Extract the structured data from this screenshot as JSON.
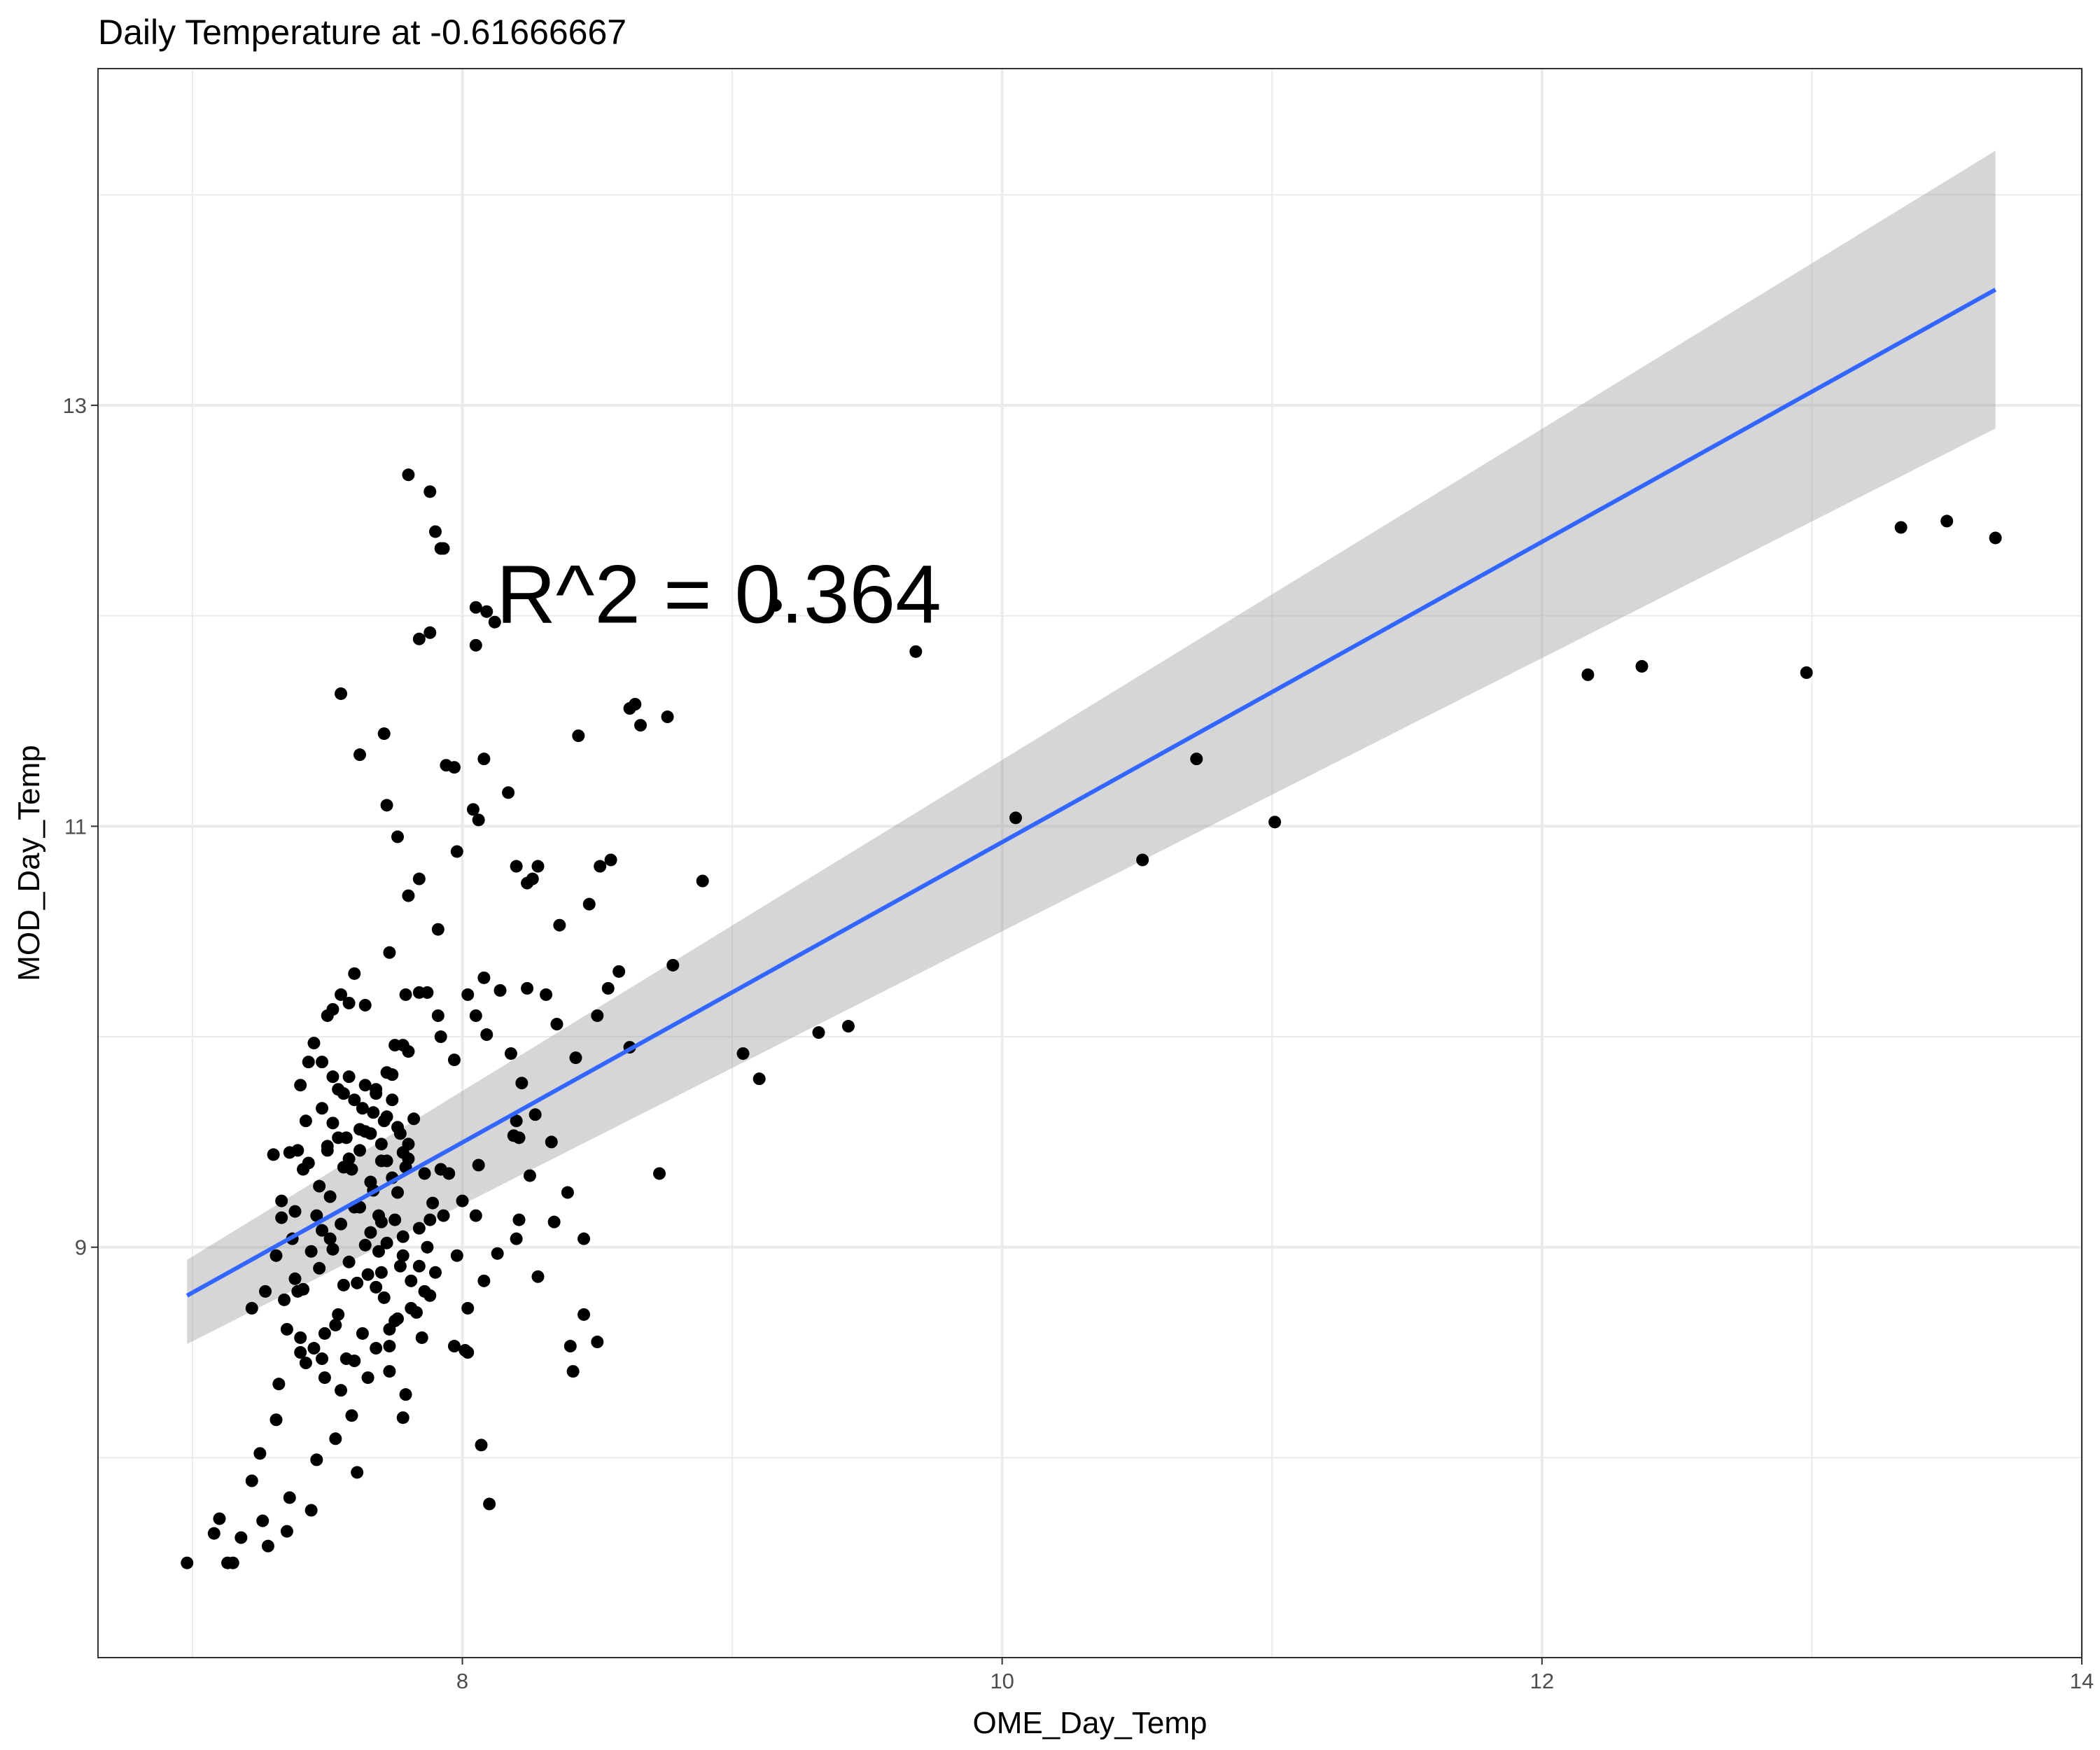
{
  "chart_data": {
    "type": "scatter",
    "title": "Daily Temperature at  -0.61666667",
    "xlabel": "OME_Day_Temp",
    "ylabel": "MOD_Day_Temp",
    "xlim": [
      6.65,
      14.0
    ],
    "ylim": [
      7.05,
      14.6
    ],
    "x_ticks": [
      8,
      10,
      12,
      14
    ],
    "x_tick_labels": [
      "8",
      "10",
      "12",
      "14"
    ],
    "x_minor_ticks": [
      7,
      9,
      11,
      13
    ],
    "y_ticks": [
      9,
      11,
      13
    ],
    "y_tick_labels": [
      "9",
      "11",
      "13"
    ],
    "y_minor_ticks": [
      8,
      10,
      12,
      14
    ],
    "grid": true,
    "annotation": {
      "text": "R^2 =  0.364",
      "x": 8.95,
      "y": 12.1
    },
    "fit": {
      "method": "linear",
      "x": [
        6.98,
        13.68
      ],
      "y": [
        8.77,
        13.55
      ],
      "ci_low": [
        8.54,
        12.89
      ],
      "ci_high": [
        8.94,
        14.21
      ]
    },
    "colors": {
      "points": "#000000",
      "fit_line": "#3366FF",
      "ci_band": "#999999",
      "grid": "#ebebeb",
      "panel_border": "#333333"
    },
    "points": [
      [
        6.98,
        7.5
      ],
      [
        7.08,
        7.64
      ],
      [
        7.1,
        7.71
      ],
      [
        7.13,
        7.5
      ],
      [
        7.15,
        7.5
      ],
      [
        7.18,
        7.62
      ],
      [
        7.22,
        7.89
      ],
      [
        7.25,
        8.02
      ],
      [
        7.26,
        7.7
      ],
      [
        7.28,
        7.58
      ],
      [
        7.22,
        8.71
      ],
      [
        7.27,
        8.79
      ],
      [
        7.31,
        8.18
      ],
      [
        7.32,
        8.35
      ],
      [
        7.33,
        9.14
      ],
      [
        7.35,
        7.65
      ],
      [
        7.36,
        7.81
      ],
      [
        7.37,
        9.04
      ],
      [
        7.38,
        9.17
      ],
      [
        7.39,
        9.46
      ],
      [
        7.4,
        8.5
      ],
      [
        7.41,
        8.8
      ],
      [
        7.42,
        8.45
      ],
      [
        7.43,
        9.4
      ],
      [
        7.44,
        7.75
      ],
      [
        7.45,
        8.52
      ],
      [
        7.46,
        7.99
      ],
      [
        7.47,
        8.9
      ],
      [
        7.48,
        9.08
      ],
      [
        7.49,
        8.38
      ],
      [
        7.5,
        9.46
      ],
      [
        7.51,
        9.04
      ],
      [
        7.52,
        9.81
      ],
      [
        7.53,
        8.09
      ],
      [
        7.54,
        9.75
      ],
      [
        7.55,
        8.32
      ],
      [
        7.56,
        9.38
      ],
      [
        7.57,
        9.52
      ],
      [
        7.58,
        8.93
      ],
      [
        7.59,
        8.2
      ],
      [
        7.6,
        9.19
      ],
      [
        7.61,
        7.93
      ],
      [
        7.62,
        9.56
      ],
      [
        7.63,
        8.59
      ],
      [
        7.64,
        9.01
      ],
      [
        7.65,
        8.87
      ],
      [
        7.66,
        9.31
      ],
      [
        7.67,
        9.64
      ],
      [
        7.68,
        8.52
      ],
      [
        7.69,
        9.15
      ],
      [
        7.7,
        9.49
      ],
      [
        7.71,
        8.76
      ],
      [
        7.72,
        9.02
      ],
      [
        7.73,
        8.41
      ],
      [
        7.74,
        9.7
      ],
      [
        7.75,
        8.65
      ],
      [
        7.76,
        9.26
      ],
      [
        7.77,
        9.54
      ],
      [
        7.78,
        8.96
      ],
      [
        7.79,
        8.3
      ],
      [
        7.8,
        9.42
      ],
      [
        7.81,
        8.84
      ],
      [
        7.82,
        9.61
      ],
      [
        7.83,
        8.69
      ],
      [
        7.84,
        9.09
      ],
      [
        7.85,
        8.57
      ],
      [
        7.86,
        9.35
      ],
      [
        7.87,
        9.0
      ],
      [
        7.88,
        8.77
      ],
      [
        7.89,
        9.21
      ],
      [
        7.51,
        9.24
      ],
      [
        7.53,
        8.63
      ],
      [
        7.55,
        9.11
      ],
      [
        7.57,
        8.47
      ],
      [
        7.59,
        9.37
      ],
      [
        7.61,
        8.83
      ],
      [
        7.63,
        9.66
      ],
      [
        7.65,
        8.38
      ],
      [
        7.67,
        9.27
      ],
      [
        7.69,
        8.98
      ],
      [
        7.71,
        9.6
      ],
      [
        7.73,
        8.53
      ],
      [
        7.75,
        9.13
      ],
      [
        7.77,
        8.91
      ],
      [
        7.79,
        9.38
      ],
      [
        7.81,
        8.71
      ],
      [
        7.52,
        8.99
      ],
      [
        7.56,
        8.82
      ],
      [
        7.62,
        9.19
      ],
      [
        7.66,
        9.07
      ],
      [
        7.7,
        8.88
      ],
      [
        7.74,
        9.33
      ],
      [
        7.78,
        9.05
      ],
      [
        7.47,
        9.29
      ],
      [
        7.49,
        8.59
      ],
      [
        7.44,
        8.98
      ],
      [
        7.42,
        9.6
      ],
      [
        7.4,
        8.57
      ],
      [
        7.38,
        8.85
      ],
      [
        7.36,
        9.45
      ],
      [
        7.35,
        8.61
      ],
      [
        7.33,
        9.22
      ],
      [
        7.3,
        9.44
      ],
      [
        7.31,
        8.96
      ],
      [
        7.34,
        8.75
      ],
      [
        7.39,
        8.79
      ],
      [
        7.41,
        9.37
      ],
      [
        7.46,
        9.15
      ],
      [
        7.48,
        8.47
      ],
      [
        7.54,
        8.68
      ],
      [
        7.58,
        9.42
      ],
      [
        7.6,
        8.46
      ],
      [
        7.64,
        9.55
      ],
      [
        7.68,
        8.81
      ],
      [
        7.72,
        9.41
      ],
      [
        7.76,
        8.66
      ],
      [
        7.8,
        9.49
      ],
      [
        7.84,
        8.91
      ],
      [
        7.86,
        8.79
      ],
      [
        7.88,
        9.13
      ],
      [
        7.92,
        9.37
      ],
      [
        7.95,
        9.35
      ],
      [
        7.98,
        8.96
      ],
      [
        8.0,
        9.22
      ],
      [
        8.02,
        8.71
      ],
      [
        8.05,
        9.15
      ],
      [
        7.97,
        8.53
      ],
      [
        8.01,
        8.51
      ],
      [
        7.93,
        9.15
      ],
      [
        7.9,
        8.88
      ],
      [
        7.48,
        9.66
      ],
      [
        7.5,
        9.48
      ],
      [
        7.52,
        9.59
      ],
      [
        7.54,
        9.52
      ],
      [
        7.56,
        9.73
      ],
      [
        7.58,
        9.81
      ],
      [
        7.6,
        9.7
      ],
      [
        7.62,
        9.46
      ],
      [
        7.64,
        9.77
      ],
      [
        7.66,
        9.54
      ],
      [
        7.68,
        9.73
      ],
      [
        7.7,
        9.41
      ],
      [
        7.72,
        9.62
      ],
      [
        7.74,
        9.82
      ],
      [
        7.76,
        9.57
      ],
      [
        7.78,
        9.45
      ],
      [
        7.8,
        9.93
      ],
      [
        7.75,
        9.96
      ],
      [
        7.78,
        9.96
      ],
      [
        7.72,
        9.83
      ],
      [
        7.68,
        9.75
      ],
      [
        7.64,
        10.15
      ],
      [
        7.6,
        10.3
      ],
      [
        7.55,
        10.2
      ],
      [
        7.58,
        10.16
      ],
      [
        7.52,
        10.13
      ],
      [
        7.5,
        10.1
      ],
      [
        7.45,
        9.97
      ],
      [
        7.48,
        9.88
      ],
      [
        7.43,
        9.88
      ],
      [
        7.4,
        9.77
      ],
      [
        7.73,
        10.4
      ],
      [
        7.79,
        10.2
      ],
      [
        7.84,
        10.21
      ],
      [
        7.91,
        10.1
      ],
      [
        7.87,
        10.21
      ],
      [
        7.92,
        10.0
      ],
      [
        7.97,
        9.89
      ],
      [
        8.08,
        10.28
      ],
      [
        8.02,
        10.2
      ],
      [
        8.05,
        10.1
      ],
      [
        8.09,
        10.01
      ],
      [
        8.14,
        10.22
      ],
      [
        8.18,
        9.92
      ],
      [
        8.22,
        9.78
      ],
      [
        8.27,
        9.63
      ],
      [
        8.2,
        9.6
      ],
      [
        8.21,
        9.52
      ],
      [
        8.24,
        10.23
      ],
      [
        8.31,
        10.2
      ],
      [
        8.35,
        10.06
      ],
      [
        8.42,
        9.9
      ],
      [
        8.5,
        10.1
      ],
      [
        8.54,
        10.23
      ],
      [
        8.58,
        10.31
      ],
      [
        8.62,
        9.95
      ],
      [
        8.78,
        10.34
      ],
      [
        8.73,
        9.35
      ],
      [
        8.06,
        9.39
      ],
      [
        8.19,
        9.53
      ],
      [
        8.25,
        9.34
      ],
      [
        8.33,
        9.5
      ],
      [
        8.39,
        9.26
      ],
      [
        8.45,
        9.04
      ],
      [
        8.5,
        8.55
      ],
      [
        8.34,
        9.12
      ],
      [
        8.28,
        8.86
      ],
      [
        8.4,
        8.53
      ],
      [
        8.02,
        8.5
      ],
      [
        8.08,
        8.84
      ],
      [
        8.13,
        8.97
      ],
      [
        8.07,
        8.06
      ],
      [
        8.1,
        7.78
      ],
      [
        8.2,
        9.04
      ],
      [
        8.21,
        9.13
      ],
      [
        8.45,
        8.68
      ],
      [
        7.7,
        9.12
      ],
      [
        7.73,
        8.61
      ],
      [
        7.78,
        8.19
      ],
      [
        8.41,
        8.41
      ],
      [
        8.2,
        10.81
      ],
      [
        8.24,
        10.73
      ],
      [
        8.26,
        10.75
      ],
      [
        8.28,
        10.81
      ],
      [
        8.36,
        10.53
      ],
      [
        8.43,
        11.43
      ],
      [
        8.47,
        10.63
      ],
      [
        8.51,
        10.81
      ],
      [
        8.55,
        10.84
      ],
      [
        8.62,
        11.56
      ],
      [
        8.66,
        11.48
      ],
      [
        8.76,
        11.52
      ],
      [
        8.64,
        11.58
      ],
      [
        8.89,
        10.74
      ],
      [
        8.04,
        11.08
      ],
      [
        8.08,
        11.32
      ],
      [
        8.06,
        11.03
      ],
      [
        8.17,
        11.16
      ],
      [
        7.98,
        10.88
      ],
      [
        7.91,
        10.51
      ],
      [
        7.84,
        10.75
      ],
      [
        7.8,
        10.67
      ],
      [
        7.97,
        11.28
      ],
      [
        7.94,
        11.29
      ],
      [
        7.76,
        10.95
      ],
      [
        7.72,
        11.1
      ],
      [
        7.62,
        11.34
      ],
      [
        7.55,
        11.63
      ],
      [
        7.71,
        11.44
      ],
      [
        7.88,
        11.92
      ],
      [
        7.84,
        11.89
      ],
      [
        8.05,
        11.86
      ],
      [
        7.92,
        12.32
      ],
      [
        7.9,
        12.4
      ],
      [
        7.8,
        12.67
      ],
      [
        7.88,
        12.59
      ],
      [
        7.93,
        12.32
      ],
      [
        8.05,
        12.04
      ],
      [
        8.09,
        12.02
      ],
      [
        8.12,
        11.97
      ],
      [
        9.04,
        9.92
      ],
      [
        9.1,
        9.8
      ],
      [
        9.32,
        10.02
      ],
      [
        9.43,
        10.05
      ],
      [
        9.68,
        11.83
      ],
      [
        9.16,
        12.05
      ],
      [
        10.05,
        11.04
      ],
      [
        10.52,
        10.84
      ],
      [
        10.72,
        11.32
      ],
      [
        11.01,
        11.02
      ],
      [
        12.17,
        11.72
      ],
      [
        12.37,
        11.76
      ],
      [
        12.98,
        11.73
      ],
      [
        13.33,
        12.42
      ],
      [
        13.5,
        12.45
      ],
      [
        13.68,
        12.37
      ]
    ]
  }
}
